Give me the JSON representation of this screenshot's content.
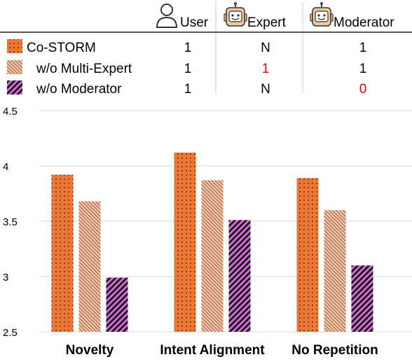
{
  "legend_table": {
    "columns": [
      {
        "label": "User",
        "icon": "user-icon"
      },
      {
        "label": "Expert",
        "icon": "robot-icon"
      },
      {
        "label": "Moderator",
        "icon": "robot-icon"
      }
    ],
    "rows": [
      {
        "label": "Co-STORM",
        "pattern": "dots",
        "cells": [
          {
            "text": "1",
            "color": "#000000"
          },
          {
            "text": "N",
            "color": "#000000"
          },
          {
            "text": "1",
            "color": "#000000"
          }
        ]
      },
      {
        "label": "w/o Multi-Expert",
        "pattern": "backslash",
        "cells": [
          {
            "text": "1",
            "color": "#000000"
          },
          {
            "text": "1",
            "color": "#e00000"
          },
          {
            "text": "1",
            "color": "#000000"
          }
        ]
      },
      {
        "label": "w/o Moderator",
        "pattern": "slash",
        "cells": [
          {
            "text": "1",
            "color": "#000000"
          },
          {
            "text": "N",
            "color": "#000000"
          },
          {
            "text": "0",
            "color": "#e00000"
          }
        ]
      }
    ]
  },
  "chart_data": {
    "type": "bar",
    "categories": [
      "Novelty",
      "Intent Alignment",
      "No Repetition"
    ],
    "series": [
      {
        "name": "Co-STORM",
        "values": [
          3.92,
          4.12,
          3.89
        ],
        "color": "#ee7733"
      },
      {
        "name": "w/o Multi-Expert",
        "values": [
          3.68,
          3.87,
          3.6
        ],
        "color": "#f6c3a6"
      },
      {
        "name": "w/o Moderator",
        "values": [
          2.99,
          3.51,
          3.1
        ],
        "color": "#d36bd6"
      }
    ],
    "yticks": [
      "2.5",
      "3",
      "3.5",
      "4",
      "4.5"
    ],
    "ylim": [
      2.5,
      4.5
    ],
    "grid": true
  }
}
